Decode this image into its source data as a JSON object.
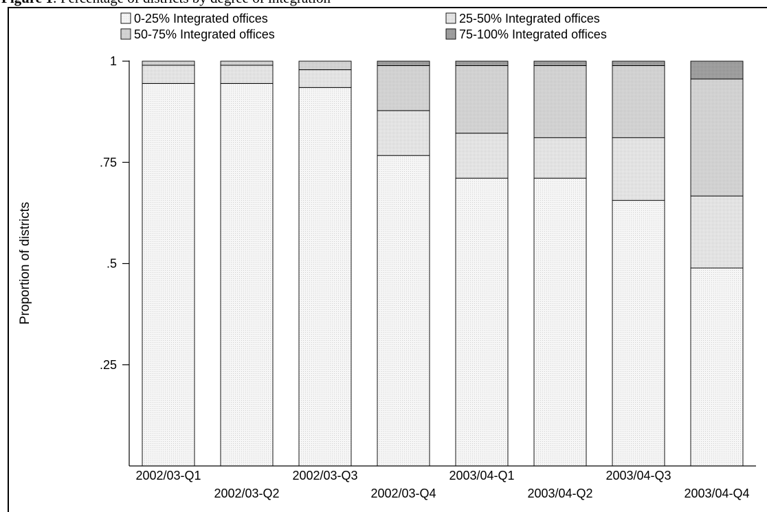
{
  "figure": {
    "label": "Figure 1",
    "title": ": Percentage of districts by degree of integration"
  },
  "chart_data": {
    "type": "bar",
    "stacked": true,
    "ylabel": "Proportion of districts",
    "xlabel": "",
    "ylim": [
      0,
      1
    ],
    "yticks": [
      0.25,
      0.5,
      0.75,
      1
    ],
    "ytick_labels": [
      ".25",
      ".5",
      ".75",
      "1"
    ],
    "grid": false,
    "legend_position": "top",
    "categories": [
      "2002/03-Q1",
      "2002/03-Q2",
      "2002/03-Q3",
      "2002/03-Q4",
      "2003/04-Q1",
      "2003/04-Q2",
      "2003/04-Q3",
      "2003/04-Q4"
    ],
    "series": [
      {
        "name": "0-25% Integrated offices",
        "color": "#f3f3f3",
        "values": [
          0.945,
          0.945,
          0.935,
          0.767,
          0.711,
          0.711,
          0.656,
          0.489
        ]
      },
      {
        "name": "25-50% Integrated offices",
        "color": "#e6e6e6",
        "values": [
          0.045,
          0.045,
          0.044,
          0.111,
          0.111,
          0.1,
          0.155,
          0.178
        ]
      },
      {
        "name": "50-75% Integrated offices",
        "color": "#d2d2d2",
        "values": [
          0.01,
          0.01,
          0.021,
          0.111,
          0.167,
          0.178,
          0.178,
          0.289
        ]
      },
      {
        "name": "75-100% Integrated offices",
        "color": "#a0a0a0",
        "values": [
          0,
          0,
          0,
          0.011,
          0.011,
          0.011,
          0.011,
          0.044
        ]
      }
    ]
  }
}
